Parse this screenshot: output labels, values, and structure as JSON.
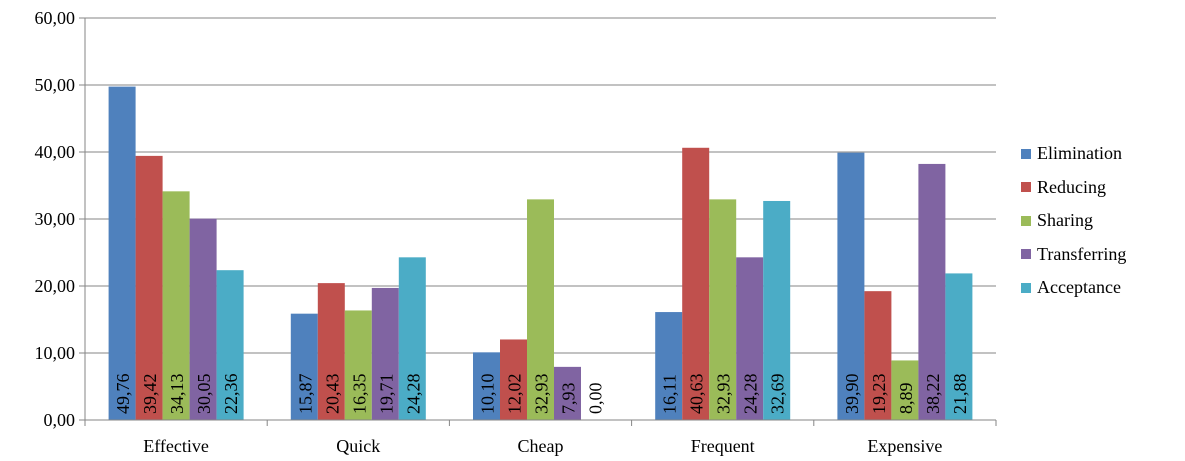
{
  "chart_data": {
    "type": "bar",
    "title": "",
    "xlabel": "",
    "ylabel": "",
    "categories": [
      "Effective",
      "Quick",
      "Cheap",
      "Frequent",
      "Expensive"
    ],
    "ylim": [
      0,
      60
    ],
    "yticks": [
      "0,00",
      "10,00",
      "20,00",
      "30,00",
      "40,00",
      "50,00",
      "60,00"
    ],
    "grid": true,
    "legend_position": "right",
    "series": [
      {
        "name": "Elimination",
        "color": "#4F81BD",
        "values": [
          49.76,
          15.87,
          10.1,
          16.11,
          39.9
        ],
        "labels": [
          "49,76",
          "15,87",
          "10,10",
          "16,11",
          "39,90"
        ]
      },
      {
        "name": "Reducing",
        "color": "#C0504D",
        "values": [
          39.42,
          20.43,
          12.02,
          40.63,
          19.23
        ],
        "labels": [
          "39,42",
          "20,43",
          "12,02",
          "40,63",
          "19,23"
        ]
      },
      {
        "name": "Sharing",
        "color": "#9BBB59",
        "values": [
          34.13,
          16.35,
          32.93,
          32.93,
          8.89
        ],
        "labels": [
          "34,13",
          "16,35",
          "32,93",
          "32,93",
          "8,89"
        ]
      },
      {
        "name": "Transferring",
        "color": "#8064A2",
        "values": [
          30.05,
          19.71,
          7.93,
          24.28,
          38.22
        ],
        "labels": [
          "30,05",
          "19,71",
          "7,93",
          "24,28",
          "38,22"
        ]
      },
      {
        "name": "Acceptance",
        "color": "#4BACC6",
        "values": [
          22.36,
          24.28,
          0.0,
          32.69,
          21.88
        ],
        "labels": [
          "22,36",
          "24,28",
          "0,00",
          "32,69",
          "21,88"
        ]
      }
    ]
  }
}
